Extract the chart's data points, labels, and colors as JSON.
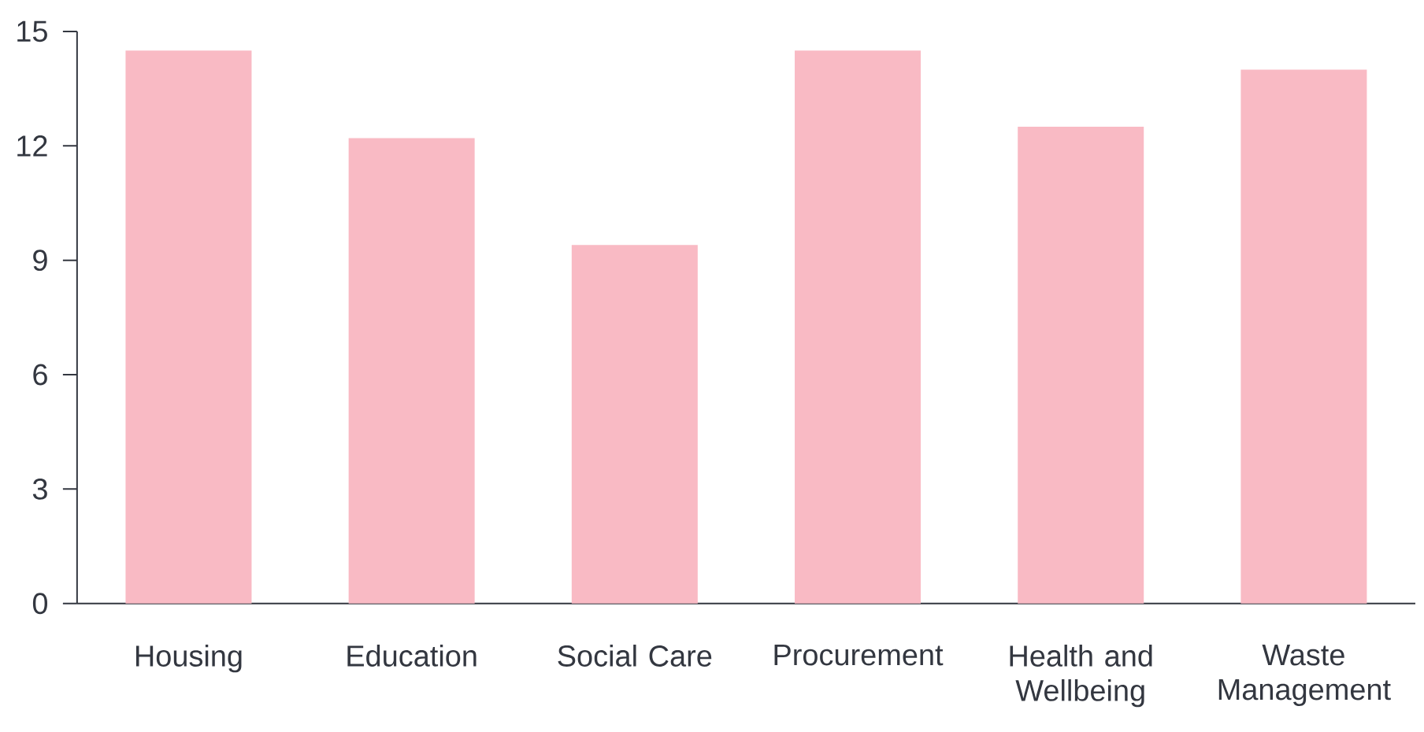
{
  "chart_data": {
    "type": "bar",
    "categories": [
      "Housing",
      "Education",
      "Social Care",
      "Procurement",
      "Health and Wellbeing",
      "Waste Management"
    ],
    "values": [
      14.5,
      12.2,
      9.4,
      14.5,
      12.5,
      14.0
    ],
    "color": "#f9bac4",
    "ylim": [
      0,
      15
    ],
    "yticks": [
      0,
      3,
      6,
      9,
      12,
      15
    ],
    "grid": false
  }
}
